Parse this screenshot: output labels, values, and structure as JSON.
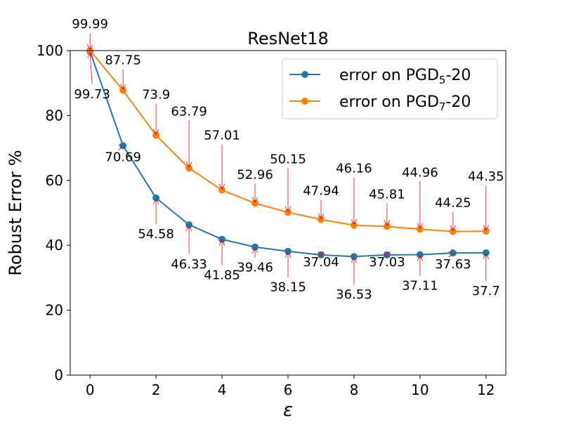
{
  "chart_data": {
    "type": "line",
    "title": "ResNet18",
    "xlabel": "ε",
    "ylabel": "Robust Error %",
    "xlim": [
      -0.6,
      12.6
    ],
    "ylim": [
      0,
      100
    ],
    "xticks": [
      0,
      2,
      4,
      6,
      8,
      10,
      12
    ],
    "yticks": [
      0,
      20,
      40,
      60,
      80,
      100
    ],
    "xtick_labels": [
      "0",
      "2",
      "4",
      "6",
      "8",
      "10",
      "12"
    ],
    "ytick_labels": [
      "0",
      "20",
      "40",
      "60",
      "80",
      "100"
    ],
    "grid": false,
    "legend_position": "top-right",
    "x": [
      0,
      1,
      2,
      3,
      4,
      5,
      6,
      7,
      8,
      9,
      10,
      11,
      12
    ],
    "series": [
      {
        "name": "error on PGD5-20",
        "legend_prefix": "error on PGD",
        "legend_sub": "5",
        "legend_suffix": "-20",
        "color": "#1f77b4",
        "values": [
          99.73,
          70.69,
          54.58,
          46.33,
          41.85,
          39.46,
          38.15,
          37.04,
          36.53,
          37.03,
          37.11,
          37.63,
          37.7
        ],
        "labels": [
          "99.73",
          "70.69",
          "54.58",
          "46.33",
          "41.85",
          "39.46",
          "38.15",
          "37.04",
          "36.53",
          "37.03",
          "37.11",
          "37.63",
          "37.7"
        ],
        "label_side": "below"
      },
      {
        "name": "error on PGD7-20",
        "legend_prefix": "error on PGD",
        "legend_sub": "7",
        "legend_suffix": "-20",
        "color": "#ff7f0e",
        "values": [
          99.99,
          87.75,
          73.9,
          63.79,
          57.01,
          52.96,
          50.15,
          47.94,
          46.16,
          45.81,
          44.96,
          44.25,
          44.35
        ],
        "labels": [
          "99.99",
          "87.75",
          "73.9",
          "63.79",
          "57.01",
          "52.96",
          "50.15",
          "47.94",
          "46.16",
          "45.81",
          "44.96",
          "44.25",
          "44.35"
        ],
        "label_side": "above"
      }
    ],
    "annotation_arrow_color": "#ff0000"
  }
}
